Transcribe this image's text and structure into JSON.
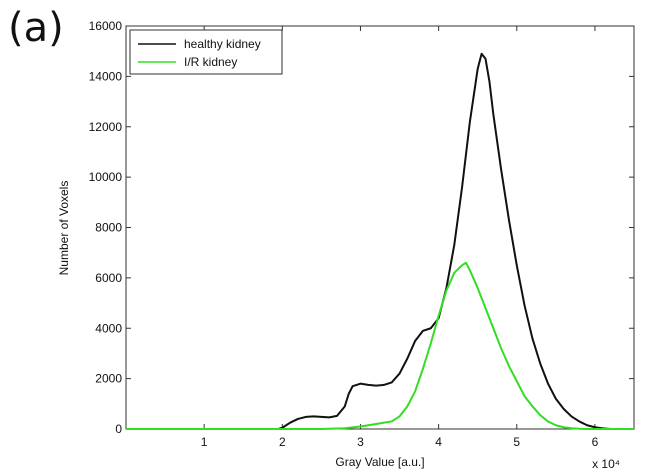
{
  "panel_label": "(a)",
  "colors": {
    "healthy": "#111111",
    "ir": "#33dd22",
    "axis": "#333333",
    "background": "#ffffff"
  },
  "chart_data": {
    "type": "line",
    "title": "",
    "xlabel": "Gray Value [a.u.]",
    "ylabel": "Number of Voxels",
    "x_exponent_label": "x 10⁴",
    "xlim": [
      0,
      6.5
    ],
    "ylim": [
      0,
      16000
    ],
    "x_ticks": [
      1,
      2,
      3,
      4,
      5,
      6
    ],
    "x_tick_labels": [
      "1",
      "2",
      "3",
      "4",
      "5",
      "6"
    ],
    "y_ticks": [
      0,
      2000,
      4000,
      6000,
      8000,
      10000,
      12000,
      14000,
      16000
    ],
    "y_tick_labels": [
      "0",
      "2000",
      "4000",
      "6000",
      "8000",
      "10000",
      "12000",
      "14000",
      "16000"
    ],
    "grid": false,
    "legend_position": "top-left",
    "series": [
      {
        "name": "healthy kidney",
        "color": "#111111",
        "x": [
          0,
          1.0,
          1.5,
          1.95,
          2.0,
          2.1,
          2.2,
          2.3,
          2.4,
          2.5,
          2.6,
          2.7,
          2.8,
          2.85,
          2.9,
          3.0,
          3.1,
          3.2,
          3.3,
          3.4,
          3.5,
          3.6,
          3.7,
          3.8,
          3.9,
          4.0,
          4.1,
          4.2,
          4.3,
          4.4,
          4.5,
          4.55,
          4.6,
          4.65,
          4.7,
          4.8,
          4.9,
          5.0,
          5.1,
          5.2,
          5.3,
          5.4,
          5.5,
          5.6,
          5.7,
          5.8,
          5.9,
          6.0,
          6.1,
          6.2,
          6.5
        ],
        "y": [
          0,
          0,
          0,
          0,
          50,
          250,
          400,
          480,
          500,
          480,
          460,
          520,
          900,
          1400,
          1700,
          1800,
          1750,
          1720,
          1750,
          1850,
          2200,
          2800,
          3500,
          3900,
          4000,
          4400,
          5600,
          7300,
          9600,
          12200,
          14300,
          14900,
          14700,
          13800,
          12500,
          10300,
          8300,
          6500,
          4900,
          3600,
          2600,
          1800,
          1200,
          800,
          500,
          300,
          150,
          70,
          25,
          0,
          0
        ]
      },
      {
        "name": "I/R kidney",
        "color": "#33dd22",
        "x": [
          0,
          1.0,
          2.0,
          2.5,
          2.8,
          3.0,
          3.2,
          3.4,
          3.5,
          3.6,
          3.7,
          3.8,
          3.9,
          4.0,
          4.1,
          4.2,
          4.3,
          4.35,
          4.4,
          4.5,
          4.6,
          4.7,
          4.8,
          4.9,
          5.0,
          5.1,
          5.2,
          5.3,
          5.4,
          5.5,
          5.6,
          5.7,
          5.8,
          5.9,
          6.0,
          6.5
        ],
        "y": [
          0,
          0,
          0,
          0,
          30,
          100,
          200,
          300,
          500,
          900,
          1500,
          2400,
          3400,
          4500,
          5500,
          6200,
          6500,
          6600,
          6300,
          5600,
          4800,
          4000,
          3200,
          2500,
          1900,
          1300,
          900,
          550,
          300,
          150,
          70,
          30,
          10,
          0,
          0,
          0
        ]
      }
    ]
  }
}
